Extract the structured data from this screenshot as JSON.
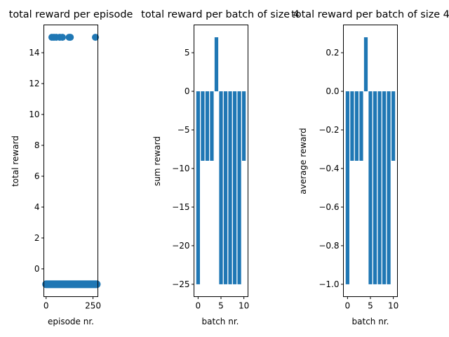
{
  "chart_data": [
    {
      "type": "scatter",
      "title": "total reward per episode",
      "xlabel": "episode nr.",
      "ylabel": "total reward",
      "xlim": [
        -12,
        276
      ],
      "ylim": [
        -1.8,
        15.8
      ],
      "xticks": [
        0,
        250
      ],
      "yticks": [
        0,
        2,
        4,
        6,
        8,
        10,
        12,
        14
      ],
      "high_points_x": [
        31,
        42,
        54,
        73,
        87,
        123,
        129,
        263
      ],
      "high_value": 15,
      "low_value": -1,
      "low_x_range": [
        0,
        270
      ],
      "color": "#1f77b4",
      "grid": false
    },
    {
      "type": "bar",
      "title": "total reward per batch of size 4",
      "xlabel": "batch nr.",
      "ylabel": "sum reward",
      "x": [
        0,
        1,
        2,
        3,
        4,
        5,
        6,
        7,
        8,
        9,
        10
      ],
      "values": [
        -25,
        -9,
        -9,
        -9,
        7,
        -25,
        -25,
        -25,
        -25,
        -25,
        -9
      ],
      "xlim": [
        -0.9,
        10.9
      ],
      "ylim": [
        -26.6,
        8.6
      ],
      "xticks": [
        0,
        5,
        10
      ],
      "yticks": [
        -25,
        -20,
        -15,
        -10,
        -5,
        0,
        5
      ],
      "color": "#1f77b4",
      "grid": false
    },
    {
      "type": "bar",
      "title": "total reward per batch of size 4",
      "xlabel": "batch nr.",
      "ylabel": "average reward",
      "x": [
        0,
        1,
        2,
        3,
        4,
        5,
        6,
        7,
        8,
        9,
        10
      ],
      "values": [
        -1.0,
        -0.36,
        -0.36,
        -0.36,
        0.28,
        -1.0,
        -1.0,
        -1.0,
        -1.0,
        -1.0,
        -0.36
      ],
      "xlim": [
        -0.9,
        10.9
      ],
      "ylim": [
        -1.064,
        0.344
      ],
      "xticks": [
        0,
        5,
        10
      ],
      "yticks": [
        -1.0,
        -0.8,
        -0.6,
        -0.4,
        -0.2,
        0.0,
        0.2
      ],
      "ytick_labels": [
        "−1.0",
        "−0.8",
        "−0.6",
        "−0.4",
        "−0.2",
        "0.0",
        "0.2"
      ],
      "color": "#1f77b4",
      "grid": false
    }
  ]
}
